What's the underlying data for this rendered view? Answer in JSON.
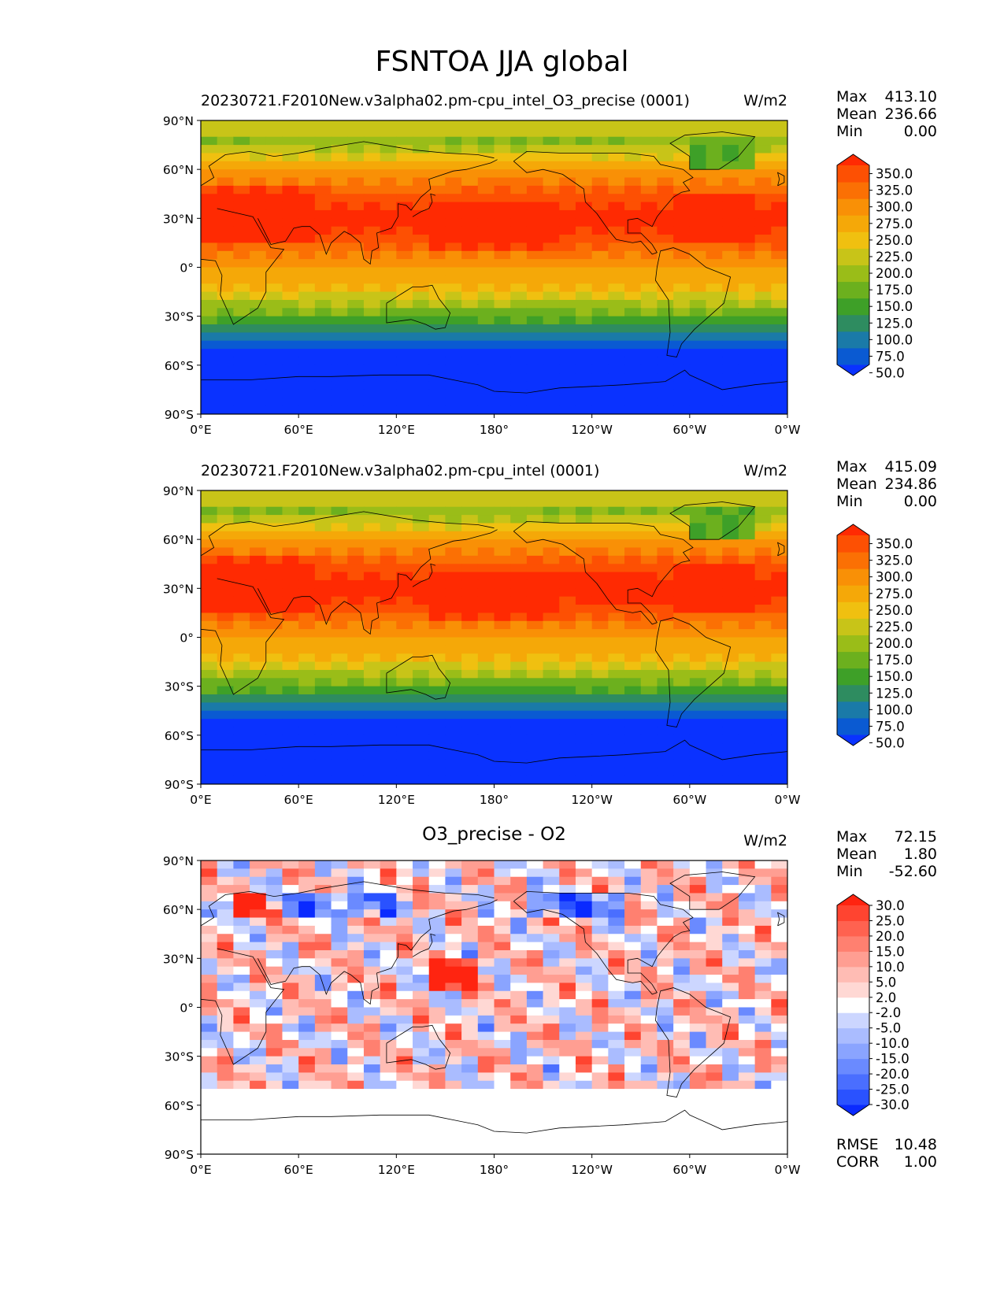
{
  "figure": {
    "title": "FSNTOA JJA global"
  },
  "axes": {
    "lat_ticks": [
      "90°N",
      "60°N",
      "30°N",
      "0°",
      "30°S",
      "60°S",
      "90°S"
    ],
    "lon_ticks": [
      "0°E",
      "60°E",
      "120°E",
      "180°",
      "120°W",
      "60°W",
      "0°W"
    ]
  },
  "panels": [
    {
      "title": "20230721.F2010New.v3alpha02.pm-cpu_intel_O3_precise (0001)",
      "units": "W/m2",
      "stats": [
        {
          "label": "Max",
          "value": "413.10"
        },
        {
          "label": "Mean",
          "value": "236.66"
        },
        {
          "label": "Min",
          "value": "0.00"
        }
      ],
      "colorbar": {
        "labels": [
          "350.0",
          "325.0",
          "300.0",
          "275.0",
          "250.0",
          "225.0",
          "200.0",
          "175.0",
          "150.0",
          "125.0",
          "100.0",
          "75.0",
          "50.0"
        ],
        "colors": [
          "#0a32ff",
          "#0a5ad2",
          "#1a7aa8",
          "#2e8c60",
          "#3ea028",
          "#6cb01e",
          "#9abd18",
          "#c8c418",
          "#f0c010",
          "#f5a808",
          "#f99006",
          "#fb7004",
          "#fd5003",
          "#ff2a02"
        ]
      }
    },
    {
      "title": "20230721.F2010New.v3alpha02.pm-cpu_intel (0001)",
      "units": "W/m2",
      "stats": [
        {
          "label": "Max",
          "value": "415.09"
        },
        {
          "label": "Mean",
          "value": "234.86"
        },
        {
          "label": "Min",
          "value": "0.00"
        }
      ],
      "colorbar": {
        "labels": [
          "350.0",
          "325.0",
          "300.0",
          "275.0",
          "250.0",
          "225.0",
          "200.0",
          "175.0",
          "150.0",
          "125.0",
          "100.0",
          "75.0",
          "50.0"
        ],
        "colors": [
          "#0a32ff",
          "#0a5ad2",
          "#1a7aa8",
          "#2e8c60",
          "#3ea028",
          "#6cb01e",
          "#9abd18",
          "#c8c418",
          "#f0c010",
          "#f5a808",
          "#f99006",
          "#fb7004",
          "#fd5003",
          "#ff2a02"
        ]
      }
    },
    {
      "title": "O3_precise - O2",
      "units": "W/m2",
      "stats": [
        {
          "label": "Max",
          "value": "72.15"
        },
        {
          "label": "Mean",
          "value": "1.80"
        },
        {
          "label": "Min",
          "value": "-52.60"
        }
      ],
      "extra_stats": [
        {
          "label": "RMSE",
          "value": "10.48"
        },
        {
          "label": "CORR",
          "value": "1.00"
        }
      ],
      "colorbar": {
        "labels": [
          "30.0",
          "25.0",
          "20.0",
          "15.0",
          "10.0",
          "5.0",
          "2.0",
          "-2.0",
          "-5.0",
          "-10.0",
          "-15.0",
          "-20.0",
          "-25.0",
          "-30.0"
        ],
        "colors": [
          "#0a2aff",
          "#2a52ff",
          "#4a6eff",
          "#6a8aff",
          "#8aa4ff",
          "#aabcff",
          "#ccd6ff",
          "#ffffff",
          "#ffd8d4",
          "#ffbcb4",
          "#ff9e92",
          "#ff8070",
          "#ff6250",
          "#ff4430",
          "#ff2410"
        ]
      }
    }
  ]
}
